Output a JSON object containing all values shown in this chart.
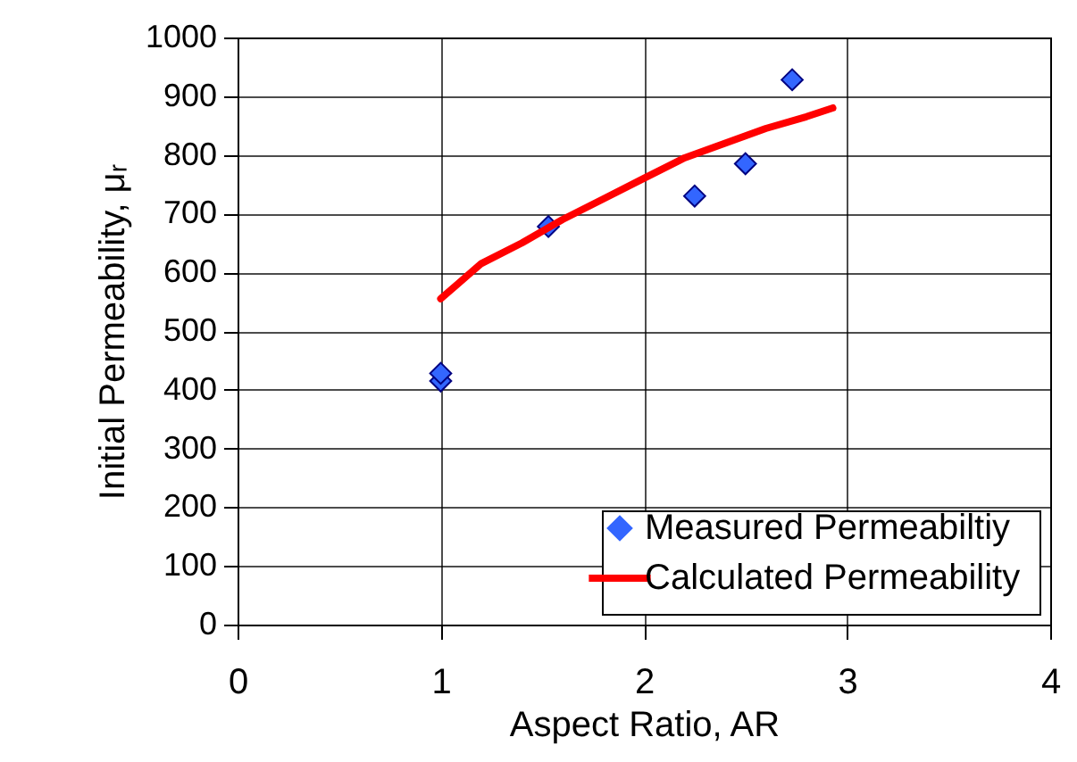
{
  "chart_data": {
    "type": "scatter",
    "xlabel": "Aspect Ratio, AR",
    "ylabel": "Initial Permeability, μᵣ",
    "xlim": [
      0,
      4
    ],
    "xticks": [
      0,
      1,
      2,
      3,
      4
    ],
    "ylim": [
      0,
      1000
    ],
    "yticks": [
      0,
      100,
      200,
      300,
      400,
      500,
      600,
      700,
      800,
      900,
      1000
    ],
    "grid": true,
    "legend": "bottom right",
    "series": [
      {
        "name": "Measured Permeabiltiy",
        "marker": "diamond",
        "color": "#3366ff",
        "x": [
          1.0,
          1.0,
          1.53,
          2.25,
          2.5,
          2.73
        ],
        "values": [
          415,
          428,
          678,
          730,
          785,
          928
        ]
      },
      {
        "name": "Calculated Permeability",
        "type": "line",
        "marker": "none",
        "color": "#ff0000",
        "x": [
          1.0,
          1.2,
          1.4,
          1.6,
          1.8,
          2.0,
          2.2,
          2.4,
          2.6,
          2.8,
          2.93
        ],
        "values": [
          555,
          615,
          650,
          690,
          725,
          760,
          795,
          820,
          845,
          865,
          880
        ]
      }
    ]
  }
}
